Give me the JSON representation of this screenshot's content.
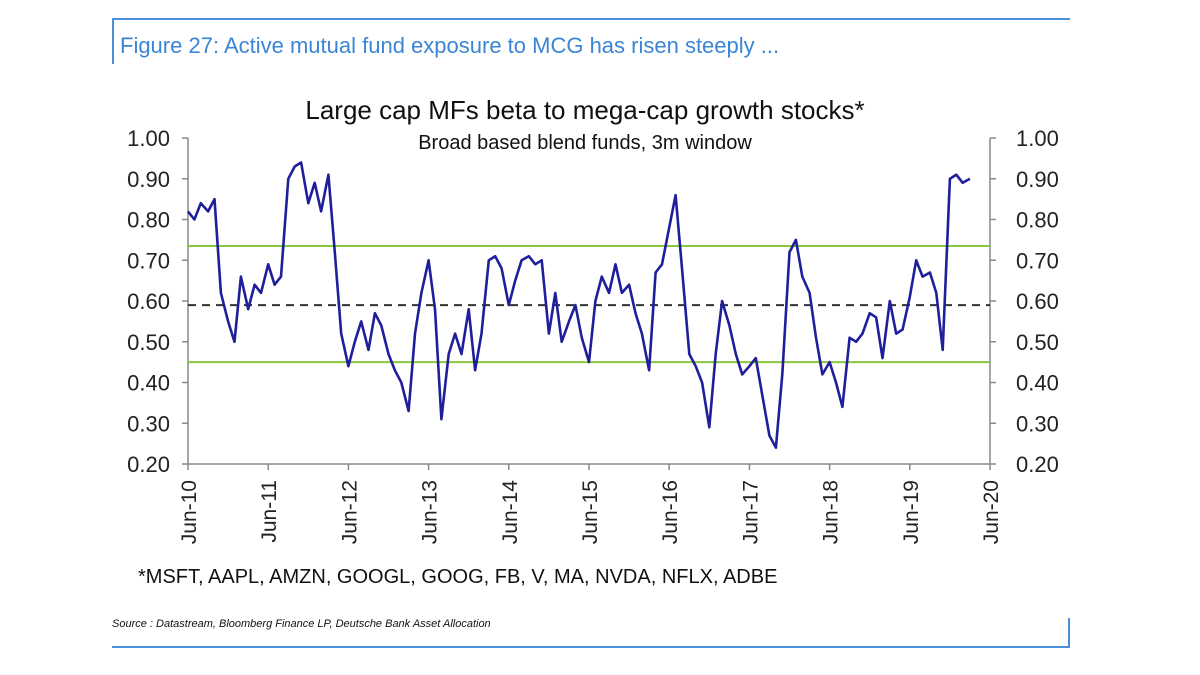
{
  "figure_title": "Figure 27: Active mutual fund exposure to MCG has risen steeply ...",
  "footnote": "*MSFT, AAPL, AMZN, GOOGL, GOOG, FB, V, MA, NVDA, NFLX, ADBE",
  "source": "Source : Datastream, Bloomberg Finance LP, Deutsche Bank Asset Allocation",
  "colors": {
    "frame": "#4a90d9",
    "series": "#1f1f9c",
    "bands": "#8cc63f",
    "mean": "#333333"
  },
  "chart_data": {
    "type": "line",
    "title": "Large cap MFs beta to mega-cap growth stocks*",
    "subtitle": "Broad based blend funds, 3m window",
    "xlabel": "",
    "ylabel": "",
    "ylim": [
      0.2,
      1.0
    ],
    "yticks": [
      "0.20",
      "0.30",
      "0.40",
      "0.50",
      "0.60",
      "0.70",
      "0.80",
      "0.90",
      "1.00"
    ],
    "xlim": [
      2010.42,
      2020.42
    ],
    "xticks": [
      "Jun-10",
      "Jun-11",
      "Jun-12",
      "Jun-13",
      "Jun-14",
      "Jun-15",
      "Jun-16",
      "Jun-17",
      "Jun-18",
      "Jun-19",
      "Jun-20"
    ],
    "grid": false,
    "reference_lines": [
      {
        "kind": "mean",
        "style": "dashed",
        "y": 0.59
      },
      {
        "kind": "upper",
        "style": "solid",
        "y": 0.735
      },
      {
        "kind": "lower",
        "style": "solid",
        "y": 0.45
      }
    ],
    "series": [
      {
        "values_x": [
          2010.42,
          2010.5,
          2010.58,
          2010.67,
          2010.75,
          2010.83,
          2010.92,
          2011.0,
          2011.08,
          2011.17,
          2011.25,
          2011.33,
          2011.42,
          2011.5,
          2011.58,
          2011.67,
          2011.75,
          2011.83,
          2011.92,
          2012.0,
          2012.08,
          2012.17,
          2012.25,
          2012.33,
          2012.42,
          2012.5,
          2012.58,
          2012.67,
          2012.75,
          2012.83,
          2012.92,
          2013.0,
          2013.08,
          2013.17,
          2013.25,
          2013.33,
          2013.42,
          2013.5,
          2013.58,
          2013.67,
          2013.75,
          2013.83,
          2013.92,
          2014.0,
          2014.08,
          2014.17,
          2014.25,
          2014.33,
          2014.42,
          2014.5,
          2014.58,
          2014.67,
          2014.75,
          2014.83,
          2014.92,
          2015.0,
          2015.08,
          2015.17,
          2015.25,
          2015.33,
          2015.42,
          2015.5,
          2015.58,
          2015.67,
          2015.75,
          2015.83,
          2015.92,
          2016.0,
          2016.08,
          2016.17,
          2016.25,
          2016.33,
          2016.42,
          2016.5,
          2016.58,
          2016.67,
          2016.75,
          2016.83,
          2016.92,
          2017.0,
          2017.08,
          2017.17,
          2017.25,
          2017.33,
          2017.42,
          2017.5,
          2017.58,
          2017.67,
          2017.75,
          2017.83,
          2017.92,
          2018.0,
          2018.08,
          2018.17,
          2018.25,
          2018.33,
          2018.42,
          2018.5,
          2018.58,
          2018.67,
          2018.75,
          2018.83,
          2018.92,
          2019.0,
          2019.08,
          2019.17,
          2019.25,
          2019.33,
          2019.42,
          2019.5,
          2019.58,
          2019.67,
          2019.75,
          2019.83,
          2019.92,
          2020.0,
          2020.08,
          2020.17
        ],
        "values_y": [
          0.82,
          0.8,
          0.84,
          0.82,
          0.85,
          0.62,
          0.55,
          0.5,
          0.66,
          0.58,
          0.64,
          0.62,
          0.69,
          0.64,
          0.66,
          0.9,
          0.93,
          0.94,
          0.84,
          0.89,
          0.82,
          0.91,
          0.72,
          0.52,
          0.44,
          0.5,
          0.55,
          0.48,
          0.57,
          0.54,
          0.47,
          0.43,
          0.4,
          0.33,
          0.52,
          0.62,
          0.7,
          0.58,
          0.31,
          0.47,
          0.52,
          0.47,
          0.58,
          0.43,
          0.52,
          0.7,
          0.71,
          0.68,
          0.59,
          0.65,
          0.7,
          0.71,
          0.69,
          0.7,
          0.52,
          0.62,
          0.5,
          0.55,
          0.59,
          0.51,
          0.45,
          0.6,
          0.66,
          0.62,
          0.69,
          0.62,
          0.64,
          0.57,
          0.52,
          0.43,
          0.67,
          0.69,
          0.78,
          0.86,
          0.68,
          0.47,
          0.44,
          0.4,
          0.29,
          0.47,
          0.6,
          0.54,
          0.47,
          0.42,
          0.44,
          0.46,
          0.37,
          0.27,
          0.24,
          0.42,
          0.72,
          0.75,
          0.66,
          0.62,
          0.51,
          0.42,
          0.45,
          0.4,
          0.34,
          0.51,
          0.5,
          0.52,
          0.57,
          0.56,
          0.46,
          0.6,
          0.52,
          0.53,
          0.61,
          0.7,
          0.66,
          0.67,
          0.62,
          0.48,
          0.9,
          0.91,
          0.89,
          0.9
        ]
      }
    ]
  }
}
